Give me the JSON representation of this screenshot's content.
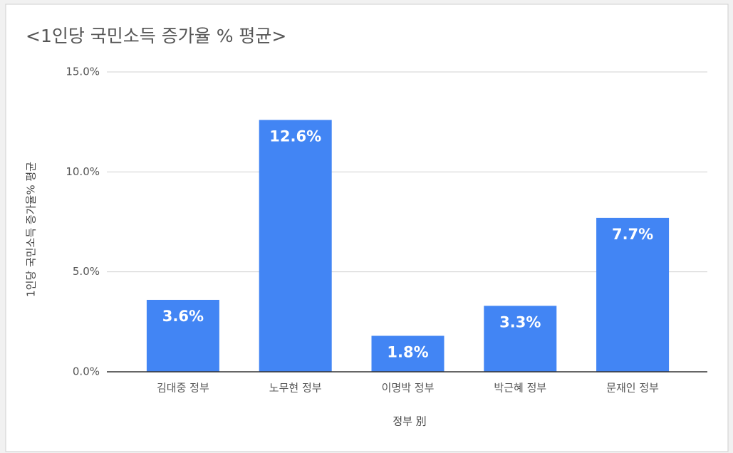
{
  "chart_data": {
    "type": "bar",
    "title": "<1인당 국민소득 증가율 % 평균>",
    "x_label": "정부 別",
    "y_label": "1인당 국민소득 증가율% 평균",
    "categories": [
      "김대중 정부",
      "노무현 정부",
      "이명박 정부",
      "박근혜 정부",
      "문재인 정부"
    ],
    "values": [
      3.6,
      12.6,
      1.8,
      3.3,
      7.7
    ],
    "value_labels": [
      "3.6%",
      "12.6%",
      "1.8%",
      "3.3%",
      "7.7%"
    ],
    "color": "#4285f4",
    "ylim": [
      0,
      15
    ],
    "yticks": [
      {
        "value": 0,
        "label": "0.0%"
      },
      {
        "value": 5,
        "label": "5.0%"
      },
      {
        "value": 10,
        "label": "10.0%"
      },
      {
        "value": 15,
        "label": "15.0%"
      }
    ],
    "grid": true
  }
}
